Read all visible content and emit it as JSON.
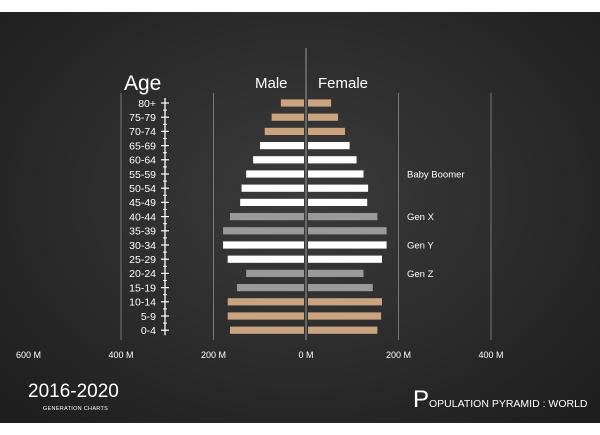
{
  "colors": {
    "board": "#2c2c2c",
    "line": "#ffffff",
    "tan": "#c9a47e",
    "white": "#ffffff",
    "gray": "#9a9a9a"
  },
  "chart_data": {
    "type": "bar",
    "title": "",
    "axis_title": "Age",
    "series": [
      {
        "name": "Male",
        "side": "left"
      },
      {
        "name": "Female",
        "side": "right"
      }
    ],
    "categories": [
      "80+",
      "75-79",
      "70-74",
      "65-69",
      "60-64",
      "55-59",
      "50-54",
      "45-49",
      "40-44",
      "35-39",
      "30-34",
      "25-29",
      "20-24",
      "15-19",
      "10-14",
      "5-9",
      "0-4"
    ],
    "male": [
      50,
      70,
      85,
      95,
      110,
      125,
      135,
      138,
      160,
      175,
      175,
      165,
      125,
      145,
      165,
      165,
      160
    ],
    "female": [
      50,
      65,
      80,
      90,
      105,
      120,
      130,
      128,
      150,
      170,
      170,
      160,
      120,
      140,
      160,
      158,
      150
    ],
    "bar_color": [
      "tan",
      "tan",
      "tan",
      "white",
      "white",
      "white",
      "white",
      "white",
      "gray",
      "gray",
      "white",
      "white",
      "gray",
      "gray",
      "tan",
      "tan",
      "tan"
    ],
    "xlim": [
      -600,
      400
    ],
    "x_ticks": [
      {
        "value": -600,
        "label": "600 M"
      },
      {
        "value": -400,
        "label": "400 M"
      },
      {
        "value": -200,
        "label": "200 M"
      },
      {
        "value": 0,
        "label": "0 M"
      },
      {
        "value": 200,
        "label": "200 M"
      },
      {
        "value": 400,
        "label": "400 M"
      }
    ],
    "generations": [
      {
        "label": "Baby Boomer",
        "category": "55-59"
      },
      {
        "label": "Gen X",
        "category": "40-44"
      },
      {
        "label": "Gen Y",
        "category": "30-34"
      },
      {
        "label": "Gen Z",
        "category": "20-24"
      }
    ],
    "grid": true
  },
  "footer": {
    "years": "2016-2020",
    "subtitle": "GENERATION CHARTS",
    "right_initial": "P",
    "right_rest": "OPULATION PYRAMID : WORLD"
  }
}
